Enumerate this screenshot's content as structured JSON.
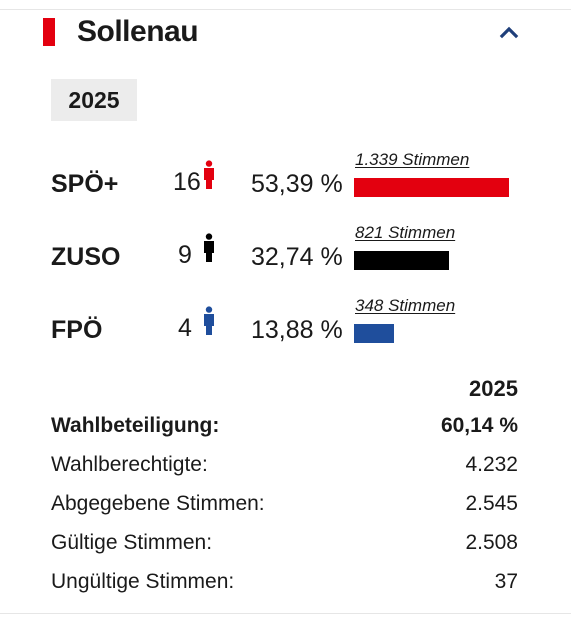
{
  "header": {
    "title": "Sollenau",
    "marker_color": "#e3000f",
    "toggle_icon": "chevron-up-icon"
  },
  "year_tab": "2025",
  "parties": [
    {
      "name": "SPÖ+",
      "seats": "16",
      "percent": "53,39 %",
      "votes": "1.339 Stimmen",
      "color": "#e3000f",
      "share": 0.5339
    },
    {
      "name": "ZUSO",
      "seats": "9",
      "percent": "32,74 %",
      "votes": "821 Stimmen",
      "color": "#000000",
      "share": 0.3274
    },
    {
      "name": "FPÖ",
      "seats": "4",
      "percent": "13,88 %",
      "votes": "348 Stimmen",
      "color": "#1f4e9c",
      "share": 0.1388
    }
  ],
  "stats": {
    "year": "2025",
    "rows": [
      {
        "label": "Wahlbeteiligung:",
        "value": "60,14 %"
      },
      {
        "label": "Wahlberechtigte:",
        "value": "4.232"
      },
      {
        "label": "Abgegebene Stimmen:",
        "value": "2.545"
      },
      {
        "label": "Gültige Stimmen:",
        "value": "2.508"
      },
      {
        "label": "Ungültige Stimmen:",
        "value": "37"
      }
    ]
  }
}
